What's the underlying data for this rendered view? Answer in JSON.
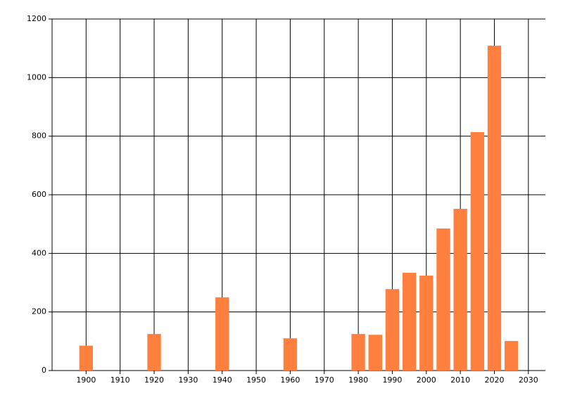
{
  "chart_data": {
    "type": "bar",
    "x": [
      1900,
      1920,
      1940,
      1960,
      1980,
      1985,
      1990,
      1995,
      2000,
      2005,
      2010,
      2015,
      2020,
      2025
    ],
    "values": [
      85,
      125,
      250,
      110,
      125,
      122,
      278,
      334,
      324,
      485,
      552,
      814,
      1109,
      101
    ],
    "color": "#ff7f3f",
    "xlim": [
      1890,
      2035
    ],
    "xticks": [
      1900,
      1910,
      1920,
      1930,
      1940,
      1950,
      1960,
      1970,
      1980,
      1990,
      2000,
      2010,
      2020,
      2030
    ],
    "ylim": [
      0,
      1200
    ],
    "yticks": [
      0,
      200,
      400,
      600,
      800,
      1000,
      1200
    ],
    "grid": true
  }
}
